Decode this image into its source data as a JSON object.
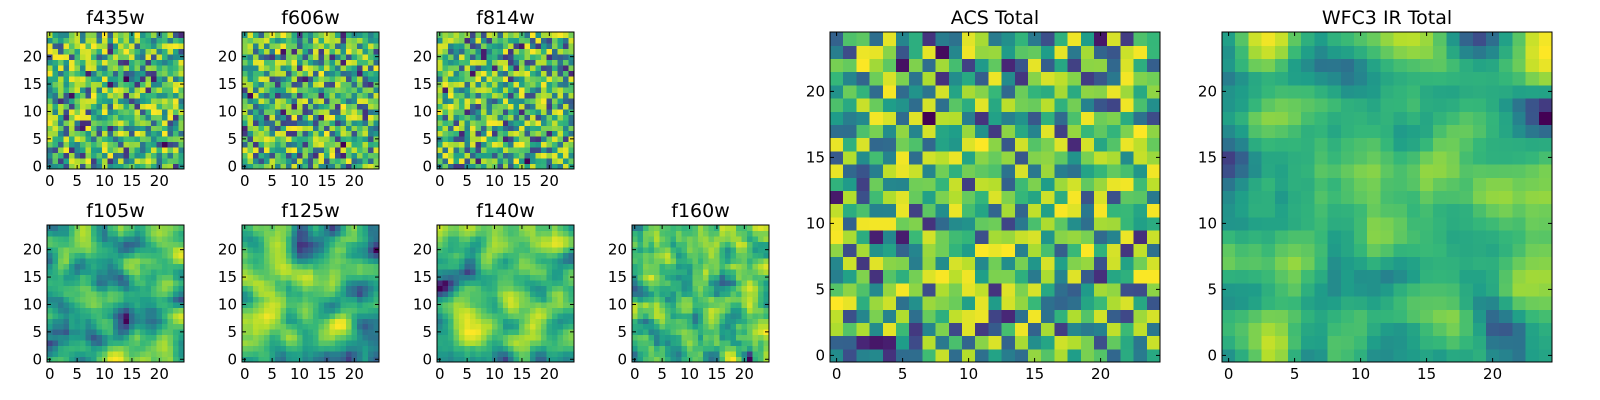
{
  "figure": {
    "description_hidden": ""
  },
  "chart_data": [
    {
      "type": "heatmap",
      "title": "f435w",
      "x_ticks": [
        "0",
        "5",
        "10",
        "15",
        "20"
      ],
      "y_ticks": [
        "0",
        "5",
        "10",
        "15",
        "20"
      ],
      "grid_size": 25,
      "xlim": [
        0,
        24
      ],
      "ylim": [
        0,
        24
      ],
      "colormap": "viridis",
      "seed": 11,
      "smooth": 0
    },
    {
      "type": "heatmap",
      "title": "f606w",
      "x_ticks": [
        "0",
        "5",
        "10",
        "15",
        "20"
      ],
      "y_ticks": [
        "0",
        "5",
        "10",
        "15",
        "20"
      ],
      "grid_size": 25,
      "xlim": [
        0,
        24
      ],
      "ylim": [
        0,
        24
      ],
      "colormap": "viridis",
      "seed": 23,
      "smooth": 0
    },
    {
      "type": "heatmap",
      "title": "f814w",
      "x_ticks": [
        "0",
        "5",
        "10",
        "15",
        "20"
      ],
      "y_ticks": [
        "0",
        "5",
        "10",
        "15",
        "20"
      ],
      "grid_size": 25,
      "xlim": [
        0,
        24
      ],
      "ylim": [
        0,
        24
      ],
      "colormap": "viridis",
      "seed": 37,
      "smooth": 0
    },
    {
      "type": "heatmap",
      "title": "f105w",
      "x_ticks": [
        "0",
        "5",
        "10",
        "15",
        "20"
      ],
      "y_ticks": [
        "0",
        "5",
        "10",
        "15",
        "20"
      ],
      "grid_size": 25,
      "xlim": [
        0,
        24
      ],
      "ylim": [
        0,
        24
      ],
      "colormap": "viridis",
      "seed": 41,
      "smooth": 2
    },
    {
      "type": "heatmap",
      "title": "f125w",
      "x_ticks": [
        "0",
        "5",
        "10",
        "15",
        "20"
      ],
      "y_ticks": [
        "0",
        "5",
        "10",
        "15",
        "20"
      ],
      "grid_size": 25,
      "xlim": [
        0,
        24
      ],
      "ylim": [
        0,
        24
      ],
      "colormap": "viridis",
      "seed": 53,
      "smooth": 2
    },
    {
      "type": "heatmap",
      "title": "f140w",
      "x_ticks": [
        "0",
        "5",
        "10",
        "15",
        "20"
      ],
      "y_ticks": [
        "0",
        "5",
        "10",
        "15",
        "20"
      ],
      "grid_size": 25,
      "xlim": [
        0,
        24
      ],
      "ylim": [
        0,
        24
      ],
      "colormap": "viridis",
      "seed": 67,
      "smooth": 2
    },
    {
      "type": "heatmap",
      "title": "f160w",
      "x_ticks": [
        "0",
        "5",
        "10",
        "15",
        "20"
      ],
      "y_ticks": [
        "0",
        "5",
        "10",
        "15",
        "20"
      ],
      "grid_size": 25,
      "xlim": [
        0,
        24
      ],
      "ylim": [
        0,
        24
      ],
      "colormap": "viridis",
      "seed": 79,
      "smooth": 1
    },
    {
      "type": "heatmap",
      "title": "ACS Total",
      "x_ticks": [
        "0",
        "5",
        "10",
        "15",
        "20"
      ],
      "y_ticks": [
        "0",
        "5",
        "10",
        "15",
        "20"
      ],
      "grid_size": 25,
      "xlim": [
        0,
        24
      ],
      "ylim": [
        0,
        24
      ],
      "colormap": "viridis",
      "seed": 97,
      "smooth": 0
    },
    {
      "type": "heatmap",
      "title": "WFC3 IR Total",
      "x_ticks": [
        "0",
        "5",
        "10",
        "15",
        "20"
      ],
      "y_ticks": [
        "0",
        "5",
        "10",
        "15",
        "20"
      ],
      "grid_size": 25,
      "xlim": [
        0,
        24
      ],
      "ylim": [
        0,
        24
      ],
      "colormap": "viridis",
      "seed": 113,
      "smooth": 2
    }
  ]
}
